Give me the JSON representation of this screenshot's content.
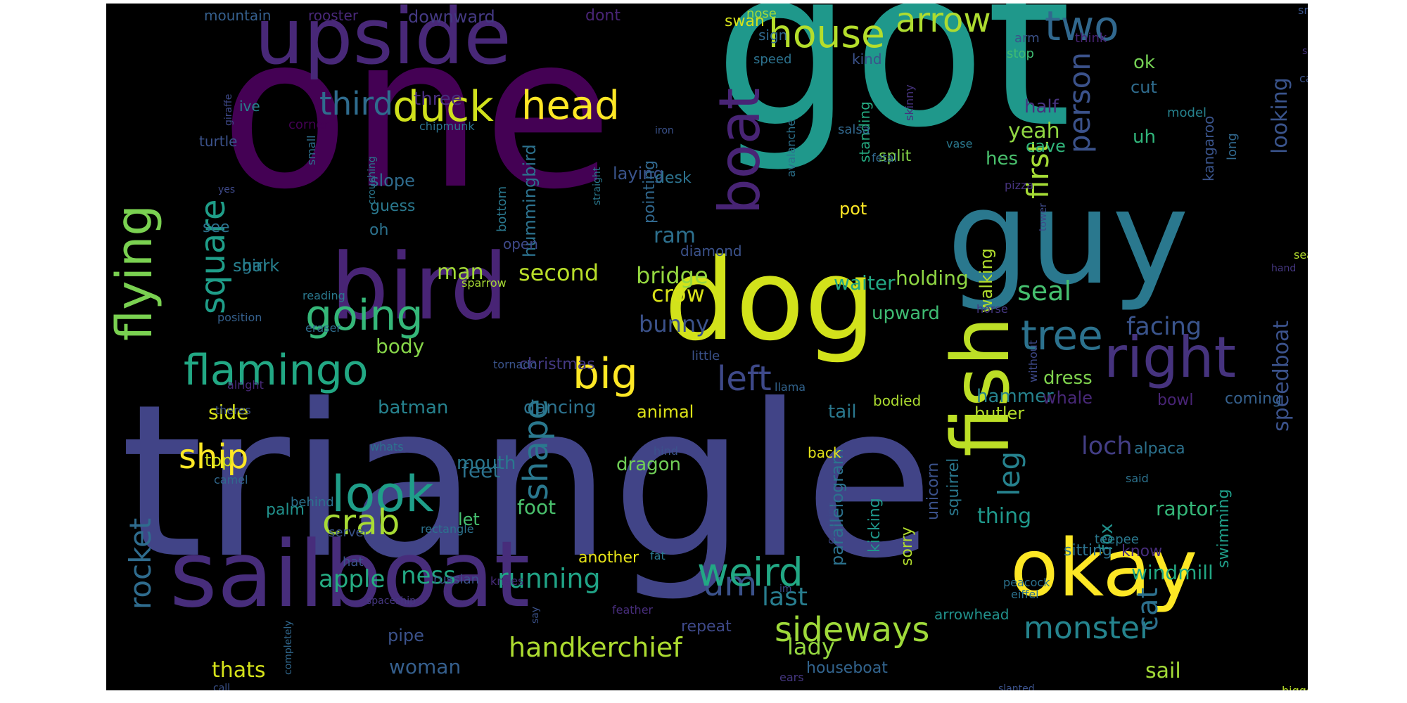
{
  "word_cloud": {
    "background": "#000000",
    "palette": "viridis",
    "words": [
      {
        "text": "triangle",
        "color": "#414487"
      },
      {
        "text": "got",
        "color": "#1f988b"
      },
      {
        "text": "one",
        "color": "#440154"
      },
      {
        "text": "guy",
        "color": "#2a788e"
      },
      {
        "text": "dog",
        "color": "#d2e21b"
      },
      {
        "text": "bird",
        "color": "#482475"
      },
      {
        "text": "sailboat",
        "color": "#472d7b"
      },
      {
        "text": "okay",
        "color": "#fde725"
      },
      {
        "text": "upside",
        "color": "#482878"
      },
      {
        "text": "fish",
        "color": "#bddf26"
      },
      {
        "text": "flying",
        "color": "#7ad151"
      },
      {
        "text": "boat",
        "color": "#482475"
      },
      {
        "text": "right",
        "color": "#46337e"
      },
      {
        "text": "flamingo",
        "color": "#22a884"
      },
      {
        "text": "big",
        "color": "#fde725"
      },
      {
        "text": "tree",
        "color": "#2c728e"
      },
      {
        "text": "look",
        "color": "#1f9e89"
      },
      {
        "text": "square",
        "color": "#1f9e89"
      },
      {
        "text": "um",
        "color": "#3b528b"
      },
      {
        "text": "crab",
        "color": "#a8db34"
      },
      {
        "text": "sideways",
        "color": "#9fda3a"
      },
      {
        "text": "weird",
        "color": "#22a884"
      },
      {
        "text": "ship",
        "color": "#fde725"
      },
      {
        "text": "shape",
        "color": "#2a788e"
      },
      {
        "text": "duck",
        "color": "#d0e11c"
      },
      {
        "text": "head",
        "color": "#fde725"
      },
      {
        "text": "house",
        "color": "#b5de2b"
      },
      {
        "text": "arrow",
        "color": "#addc30"
      },
      {
        "text": "two",
        "color": "#31688e"
      },
      {
        "text": "person",
        "color": "#3b528b"
      },
      {
        "text": "first",
        "color": "#a5db36"
      },
      {
        "text": "left",
        "color": "#3e4989"
      },
      {
        "text": "going",
        "color": "#35b779"
      },
      {
        "text": "monster",
        "color": "#25848e"
      },
      {
        "text": "rocket",
        "color": "#2f6c8e"
      },
      {
        "text": "cat",
        "color": "#2d708e"
      },
      {
        "text": "third",
        "color": "#2f6c8e"
      },
      {
        "text": "leg",
        "color": "#26828e"
      },
      {
        "text": "handkerchief",
        "color": "#addc30"
      },
      {
        "text": "seal",
        "color": "#46c06f"
      },
      {
        "text": "facing",
        "color": "#3a548c"
      },
      {
        "text": "loch",
        "color": "#433e85"
      },
      {
        "text": "speedboat",
        "color": "#3b528b"
      },
      {
        "text": "running",
        "color": "#20a386"
      },
      {
        "text": "ness",
        "color": "#22a884"
      },
      {
        "text": "apple",
        "color": "#25ab82"
      },
      {
        "text": "last",
        "color": "#287d8e"
      },
      {
        "text": "thing",
        "color": "#1f988b"
      },
      {
        "text": "bunny",
        "color": "#3b528b"
      },
      {
        "text": "crow",
        "color": "#d8e219"
      },
      {
        "text": "second",
        "color": "#b8de29"
      },
      {
        "text": "bridge",
        "color": "#95d840"
      },
      {
        "text": "man",
        "color": "#a2da37"
      },
      {
        "text": "ram",
        "color": "#2d708e"
      },
      {
        "text": "looking",
        "color": "#3a548c"
      },
      {
        "text": "yeah",
        "color": "#90d743"
      },
      {
        "text": "lady",
        "color": "#95d840"
      },
      {
        "text": "woman",
        "color": "#355f8d"
      },
      {
        "text": "thats",
        "color": "#d5e21a"
      },
      {
        "text": "sail",
        "color": "#a2da37"
      },
      {
        "text": "upward",
        "color": "#3fbc73"
      },
      {
        "text": "holding",
        "color": "#8fd744"
      },
      {
        "text": "waiter",
        "color": "#22a884"
      },
      {
        "text": "body",
        "color": "#86d549"
      },
      {
        "text": "side",
        "color": "#d5e21a"
      },
      {
        "text": "feet",
        "color": "#2c728e"
      },
      {
        "text": "raptor",
        "color": "#35b779"
      },
      {
        "text": "windmill",
        "color": "#22a884"
      },
      {
        "text": "fox",
        "color": "#21918c"
      },
      {
        "text": "tail",
        "color": "#2a788e"
      },
      {
        "text": "dress",
        "color": "#7fd34e"
      },
      {
        "text": "hammer",
        "color": "#26828e"
      },
      {
        "text": "butler",
        "color": "#b5de2b"
      },
      {
        "text": "whale",
        "color": "#482878"
      },
      {
        "text": "dancing",
        "color": "#2c728e"
      },
      {
        "text": "batman",
        "color": "#26828e"
      },
      {
        "text": "animal",
        "color": "#dde318"
      },
      {
        "text": "christmas",
        "color": "#443983"
      },
      {
        "text": "mouth",
        "color": "#2a788e"
      },
      {
        "text": "dragon",
        "color": "#70cf57"
      },
      {
        "text": "top",
        "color": "#d5e21a"
      },
      {
        "text": "uh",
        "color": "#31b57b"
      },
      {
        "text": "hes",
        "color": "#4ac16d"
      },
      {
        "text": "half",
        "color": "#46337e"
      },
      {
        "text": "cave",
        "color": "#31b57b"
      },
      {
        "text": "ok",
        "color": "#75d054"
      },
      {
        "text": "cut",
        "color": "#2f6c8e"
      },
      {
        "text": "walking",
        "color": "#b2dd2d"
      },
      {
        "text": "pot",
        "color": "#fde725"
      },
      {
        "text": "split",
        "color": "#86d549"
      },
      {
        "text": "standing",
        "color": "#25ab82"
      },
      {
        "text": "parallelogram",
        "color": "#2c728e"
      },
      {
        "text": "unicorn",
        "color": "#3b528b"
      },
      {
        "text": "squirrel",
        "color": "#2a788e"
      },
      {
        "text": "sorry",
        "color": "#b2dd2d"
      },
      {
        "text": "kicking",
        "color": "#1f988b"
      },
      {
        "text": "swimming",
        "color": "#1f9e89"
      },
      {
        "text": "sitting",
        "color": "#2c728e"
      },
      {
        "text": "know",
        "color": "#472d7b"
      },
      {
        "text": "coming",
        "color": "#35608d"
      },
      {
        "text": "alpaca",
        "color": "#2c728e"
      },
      {
        "text": "bowl",
        "color": "#482475"
      },
      {
        "text": "kangaroo",
        "color": "#3a548c"
      },
      {
        "text": "model",
        "color": "#26828e"
      },
      {
        "text": "long",
        "color": "#31688e"
      },
      {
        "text": "bodied",
        "color": "#addc30"
      },
      {
        "text": "back",
        "color": "#e5e419"
      },
      {
        "text": "foot",
        "color": "#4ac16d"
      },
      {
        "text": "let",
        "color": "#46c06f"
      },
      {
        "text": "pipe",
        "color": "#3b528b"
      },
      {
        "text": "another",
        "color": "#e7e419"
      },
      {
        "text": "houseboat",
        "color": "#32648e"
      },
      {
        "text": "arrowhead",
        "color": "#21918c"
      },
      {
        "text": "repeat",
        "color": "#3e4989"
      },
      {
        "text": "palm",
        "color": "#21918c"
      },
      {
        "text": "girl",
        "color": "#2a788e"
      },
      {
        "text": "shark",
        "color": "#277f8e"
      },
      {
        "text": "laying",
        "color": "#3a548c"
      },
      {
        "text": "diamond",
        "color": "#3b528b"
      },
      {
        "text": "desk",
        "color": "#2c728e"
      },
      {
        "text": "pointing",
        "color": "#31688e"
      },
      {
        "text": "hummingbird",
        "color": "#2c728e"
      },
      {
        "text": "open",
        "color": "#3e4989"
      },
      {
        "text": "bottom",
        "color": "#2a788e"
      },
      {
        "text": "guess",
        "color": "#2a788e"
      },
      {
        "text": "slope",
        "color": "#2f6c8e"
      },
      {
        "text": "oh",
        "color": "#2c728e"
      },
      {
        "text": "three",
        "color": "#472d7b"
      },
      {
        "text": "turtle",
        "color": "#3b528b"
      },
      {
        "text": "ive",
        "color": "#26828e"
      },
      {
        "text": "see",
        "color": "#2c728e"
      },
      {
        "text": "mountain",
        "color": "#355f8d"
      },
      {
        "text": "rooster",
        "color": "#482878"
      },
      {
        "text": "downward",
        "color": "#443983"
      },
      {
        "text": "dont",
        "color": "#482475"
      },
      {
        "text": "swan",
        "color": "#d5e21a"
      },
      {
        "text": "nose",
        "color": "#9fda3a"
      },
      {
        "text": "sign",
        "color": "#31688e"
      },
      {
        "text": "speed",
        "color": "#2c728e"
      },
      {
        "text": "kind",
        "color": "#3b528b"
      },
      {
        "text": "arm",
        "color": "#3b528b"
      },
      {
        "text": "stop",
        "color": "#3fbc73"
      },
      {
        "text": "think",
        "color": "#482475"
      },
      {
        "text": "snowman",
        "color": "#3a548c"
      },
      {
        "text": "serpent",
        "color": "#46337e"
      },
      {
        "text": "cake",
        "color": "#3b528b"
      },
      {
        "text": "tetris",
        "color": "#9fda3a"
      },
      {
        "text": "giraffe",
        "color": "#3e4989"
      },
      {
        "text": "corner",
        "color": "#440154"
      },
      {
        "text": "chipmunk",
        "color": "#2c728e"
      },
      {
        "text": "iron",
        "color": "#3b528b"
      },
      {
        "text": "small",
        "color": "#2d708e"
      },
      {
        "text": "crouching",
        "color": "#2a788e"
      },
      {
        "text": "straight",
        "color": "#2a788e"
      },
      {
        "text": "yes",
        "color": "#3e4989"
      },
      {
        "text": "salsa",
        "color": "#31688e"
      },
      {
        "text": "skinny",
        "color": "#46337e"
      },
      {
        "text": "vase",
        "color": "#2a788e"
      },
      {
        "text": "pizza",
        "color": "#46337e"
      },
      {
        "text": "fetal",
        "color": "#31688e"
      },
      {
        "text": "avalanche",
        "color": "#2c728e"
      },
      {
        "text": "sea",
        "color": "#b2dd2d"
      },
      {
        "text": "hand",
        "color": "#453781"
      },
      {
        "text": "tower",
        "color": "#3e4989"
      },
      {
        "text": "sparrow",
        "color": "#a8db34"
      },
      {
        "text": "reading",
        "color": "#2a788e"
      },
      {
        "text": "position",
        "color": "#35608d"
      },
      {
        "text": "eraser",
        "color": "#2f6c8e"
      },
      {
        "text": "little",
        "color": "#3b528b"
      },
      {
        "text": "tornado",
        "color": "#3a548c"
      },
      {
        "text": "without",
        "color": "#3e4989"
      },
      {
        "text": "horse",
        "color": "#453781"
      },
      {
        "text": "alright",
        "color": "#482878"
      },
      {
        "text": "theres",
        "color": "#3b528b"
      },
      {
        "text": "whats",
        "color": "#2c728e"
      },
      {
        "text": "llama",
        "color": "#32648e"
      },
      {
        "text": "hind",
        "color": "#3b528b"
      },
      {
        "text": "camel",
        "color": "#31688e"
      },
      {
        "text": "behind",
        "color": "#2c728e"
      },
      {
        "text": "rectangle",
        "color": "#2c728e"
      },
      {
        "text": "server",
        "color": "#3a548c"
      },
      {
        "text": "hat",
        "color": "#3b528b"
      },
      {
        "text": "catching",
        "color": "#3e4989"
      },
      {
        "text": "fat",
        "color": "#2a788e"
      },
      {
        "text": "completely",
        "color": "#31688e"
      },
      {
        "text": "russian",
        "color": "#3b528b"
      },
      {
        "text": "knees",
        "color": "#472d7b"
      },
      {
        "text": "spaceship",
        "color": "#453781"
      },
      {
        "text": "im",
        "color": "#3e4989"
      },
      {
        "text": "feather",
        "color": "#472d7b"
      },
      {
        "text": "say",
        "color": "#3b528b"
      },
      {
        "text": "call",
        "color": "#3b528b"
      },
      {
        "text": "ears",
        "color": "#453781"
      },
      {
        "text": "slanted",
        "color": "#3b528b"
      },
      {
        "text": "peacock",
        "color": "#2c728e"
      },
      {
        "text": "eiffel",
        "color": "#2c728e"
      },
      {
        "text": "teepee",
        "color": "#2a788e"
      },
      {
        "text": "said",
        "color": "#2c728e"
      },
      {
        "text": "something",
        "color": "#482878"
      },
      {
        "text": "bigger",
        "color": "#b8de29"
      }
    ]
  }
}
